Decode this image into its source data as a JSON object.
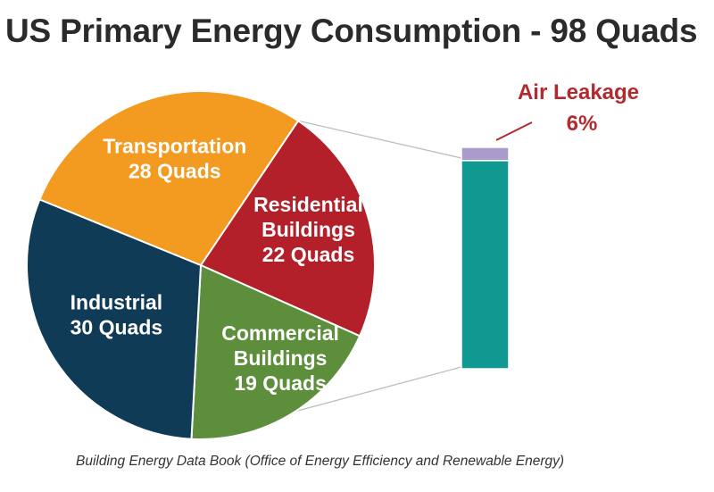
{
  "title": "US Primary Energy Consumption - 98 Quads",
  "source_note": "Building Energy Data Book (Office of Energy Efficiency and Renewable Energy)",
  "chart_data": [
    {
      "type": "pie",
      "total": 98,
      "unit": "Quads",
      "slices": [
        {
          "label_lines": [
            "Residential",
            "Buildings",
            "22 Quads"
          ],
          "value": 22,
          "color": "#b3202a"
        },
        {
          "label_lines": [
            "Commercial",
            "Buildings",
            "19 Quads"
          ],
          "value": 19,
          "color": "#5c8e3b"
        },
        {
          "label_lines": [
            "Industrial",
            "30 Quads"
          ],
          "value": 30,
          "color": "#0f3b57"
        },
        {
          "label_lines": [
            "Transportation",
            "28 Quads"
          ],
          "value": 28,
          "color": "#f39a21"
        }
      ]
    },
    {
      "type": "bar",
      "stacked": true,
      "segments": [
        {
          "name": "Air Leakage",
          "value_label": "6%",
          "value": 6,
          "color": "#a99ccc"
        },
        {
          "name": "",
          "value": 94,
          "color": "#0f9990"
        }
      ],
      "callout": {
        "line1": "Air Leakage",
        "line2": "6%"
      }
    }
  ]
}
